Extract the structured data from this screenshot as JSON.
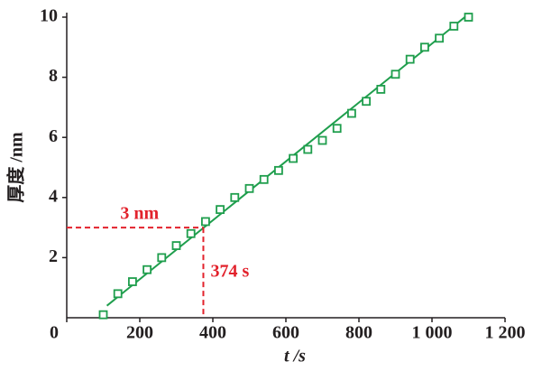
{
  "chart_data": {
    "type": "scatter",
    "xlabel": "t /s",
    "ylabel": "厚度 /nm",
    "xlim": [
      0,
      1200
    ],
    "xticks": [
      0,
      200,
      400,
      600,
      800,
      {
        "value": 1000,
        "label": "1 000"
      },
      {
        "value": 1200,
        "label": "1 200"
      }
    ],
    "ylim": [
      0,
      10
    ],
    "yticks": [
      2,
      4,
      6,
      8,
      10
    ],
    "series": [
      {
        "color": "#1f9e4d",
        "x": [
          100,
          140,
          180,
          220,
          260,
          300,
          340,
          380,
          420,
          460,
          500,
          540,
          580,
          620,
          660,
          700,
          740,
          780,
          820,
          860,
          900,
          940,
          980,
          1020,
          1060,
          1100
        ],
        "values": [
          0.1,
          0.8,
          1.2,
          1.6,
          2.0,
          2.4,
          2.8,
          3.2,
          3.6,
          4.0,
          4.3,
          4.6,
          4.9,
          5.3,
          5.6,
          5.9,
          6.3,
          6.8,
          7.2,
          7.6,
          8.1,
          8.6,
          9.0,
          9.3,
          9.7,
          10.0
        ]
      }
    ],
    "fit": {
      "color": "#1f9e4d",
      "x": [
        110,
        1100
      ],
      "values": [
        0.4,
        10.1
      ]
    },
    "annotation": {
      "color": "#e2222c",
      "x": 374,
      "y": 3,
      "x_label": "374 s",
      "y_label": "3 nm"
    }
  }
}
